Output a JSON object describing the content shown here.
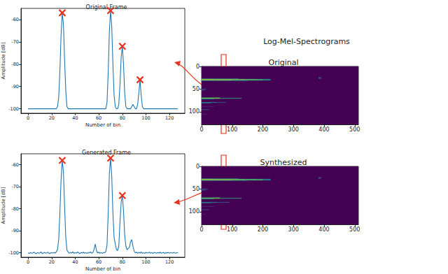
{
  "title": "Log-Mel-Spectrograms",
  "chart_data": [
    {
      "type": "line",
      "title": "Original Frame",
      "x_label": "Number of bin",
      "y_label": "Amplitude [dB]",
      "xlim": [
        -6,
        133
      ],
      "ylim": [
        -102,
        -55
      ],
      "xticks": [
        0,
        20,
        40,
        60,
        80,
        100,
        120
      ],
      "yticks": [
        -100,
        -90,
        -80,
        -70,
        -60
      ],
      "series": [
        {
          "type": "line",
          "color": "#1f77b4",
          "x": [
            0,
            1,
            2,
            3,
            4,
            5,
            6,
            7,
            8,
            9,
            10,
            11,
            12,
            13,
            14,
            15,
            16,
            17,
            18,
            19,
            20,
            21,
            22,
            23,
            24,
            25,
            26,
            27,
            28,
            29,
            30,
            31,
            32,
            33,
            34,
            35,
            36,
            37,
            38,
            39,
            40,
            41,
            42,
            43,
            44,
            45,
            46,
            47,
            48,
            49,
            50,
            51,
            52,
            53,
            54,
            55,
            56,
            57,
            58,
            59,
            60,
            61,
            62,
            63,
            64,
            65,
            66,
            67,
            68,
            69,
            70,
            71,
            72,
            73,
            74,
            75,
            76,
            77,
            78,
            79,
            80,
            81,
            82,
            83,
            84,
            85,
            86,
            87,
            88,
            89,
            90,
            91,
            92,
            93,
            94,
            95,
            96,
            97,
            98,
            99,
            100,
            101,
            102,
            103,
            104,
            105,
            106,
            107,
            108,
            109,
            110,
            111,
            112,
            113,
            114,
            115,
            116,
            117,
            118,
            119,
            120,
            121,
            122,
            123,
            124,
            125,
            126,
            127
          ],
          "values": [
            -100,
            -100,
            -100,
            -100,
            -100,
            -100,
            -100,
            -100,
            -100,
            -100,
            -100,
            -100,
            -100,
            -100,
            -100,
            -100,
            -100,
            -100,
            -100,
            -100,
            -100,
            -100,
            -100,
            -100,
            -100,
            -99,
            -95,
            -83,
            -67,
            -57,
            -62,
            -78,
            -92,
            -99,
            -100,
            -100,
            -100,
            -100,
            -100,
            -100,
            -100,
            -100,
            -100,
            -100,
            -100,
            -100,
            -100,
            -100,
            -100,
            -100,
            -100,
            -100,
            -100,
            -100,
            -100,
            -100,
            -100,
            -100,
            -100,
            -100,
            -100,
            -100,
            -100,
            -100,
            -100,
            -100,
            -100,
            -97,
            -84,
            -65,
            -56,
            -63,
            -80,
            -94,
            -99,
            -100,
            -100,
            -98,
            -89,
            -77,
            -72,
            -80,
            -93,
            -99,
            -100,
            -100,
            -100,
            -100,
            -99,
            -98,
            -99,
            -100,
            -100,
            -98,
            -93,
            -87,
            -94,
            -99,
            -100,
            -100,
            -100,
            -100,
            -100,
            -100,
            -100,
            -100,
            -100,
            -100,
            -100,
            -100,
            -100,
            -100,
            -100,
            -100,
            -100,
            -100,
            -100,
            -100,
            -100,
            -100,
            -100,
            -100,
            -100,
            -100,
            -100,
            -100,
            -100,
            -100
          ]
        },
        {
          "type": "scatter",
          "marker": "x",
          "color": "#e8331c",
          "x": [
            29,
            70,
            80,
            95
          ],
          "values": [
            -57,
            -56,
            -72,
            -87
          ]
        }
      ]
    },
    {
      "type": "line",
      "title": "Generated Frame",
      "x_label": "Number of bin",
      "y_label": "Amplitude [dB]",
      "xlim": [
        -6,
        133
      ],
      "ylim": [
        -102,
        -55
      ],
      "xticks": [
        0,
        20,
        40,
        60,
        80,
        100,
        120
      ],
      "yticks": [
        -100,
        -90,
        -80,
        -70,
        -60
      ],
      "series": [
        {
          "type": "line",
          "color": "#1f77b4",
          "x": [
            0,
            1,
            2,
            3,
            4,
            5,
            6,
            7,
            8,
            9,
            10,
            11,
            12,
            13,
            14,
            15,
            16,
            17,
            18,
            19,
            20,
            21,
            22,
            23,
            24,
            25,
            26,
            27,
            28,
            29,
            30,
            31,
            32,
            33,
            34,
            35,
            36,
            37,
            38,
            39,
            40,
            41,
            42,
            43,
            44,
            45,
            46,
            47,
            48,
            49,
            50,
            51,
            52,
            53,
            54,
            55,
            56,
            57,
            58,
            59,
            60,
            61,
            62,
            63,
            64,
            65,
            66,
            67,
            68,
            69,
            70,
            71,
            72,
            73,
            74,
            75,
            76,
            77,
            78,
            79,
            80,
            81,
            82,
            83,
            84,
            85,
            86,
            87,
            88,
            89,
            90,
            91,
            92,
            93,
            94,
            95,
            96,
            97,
            98,
            99,
            100,
            101,
            102,
            103,
            104,
            105,
            106,
            107,
            108,
            109,
            110,
            111,
            112,
            113,
            114,
            115,
            116,
            117,
            118,
            119,
            120,
            121,
            122,
            123,
            124,
            125,
            126,
            127
          ],
          "values": [
            -100,
            -100.3,
            -99.8,
            -100.2,
            -100,
            -99.7,
            -100.1,
            -100.4,
            -99.9,
            -100.2,
            -100,
            -99.6,
            -100.3,
            -100.1,
            -99.8,
            -100.2,
            -100,
            -99.7,
            -100.4,
            -100.1,
            -99.9,
            -100.2,
            -99.8,
            -100.1,
            -99.5,
            -98.5,
            -94,
            -82,
            -67,
            -58,
            -63,
            -79,
            -93,
            -98.8,
            -99.6,
            -100.2,
            -99.8,
            -100.1,
            -99.5,
            -100.3,
            -99.9,
            -100.2,
            -99.6,
            -100,
            -100.4,
            -99.8,
            -100.1,
            -99.7,
            -100.2,
            -99.9,
            -100.3,
            -99.8,
            -100,
            -99.6,
            -100.2,
            -99.9,
            -98.5,
            -96,
            -98.8,
            -100.1,
            -99.7,
            -100.2,
            -99.9,
            -100.3,
            -99.8,
            -100,
            -99.4,
            -96.5,
            -82,
            -64,
            -57,
            -65,
            -82,
            -93,
            -96,
            -98.5,
            -99,
            -97,
            -86,
            -77,
            -74,
            -81,
            -92,
            -97,
            -98.6,
            -98,
            -97.5,
            -95,
            -94,
            -97,
            -99.2,
            -100,
            -99.7,
            -100.2,
            -99.8,
            -100.1,
            -99.6,
            -100.2,
            -99.9,
            -100.3,
            -99.8,
            -100.1,
            -100,
            -99.7,
            -100.2,
            -99.9,
            -100.3,
            -99.8,
            -100,
            -100.2,
            -99.9,
            -100.1,
            -99.7,
            -100.2,
            -100,
            -99.8,
            -100.3,
            -99.9,
            -100.1,
            -99.8,
            -100.2,
            -99.9,
            -100,
            -100.1,
            -99.8,
            -100.2,
            -100,
            -99.9
          ]
        },
        {
          "type": "scatter",
          "marker": "x",
          "color": "#e8331c",
          "x": [
            29,
            70,
            80
          ],
          "values": [
            -58,
            -57,
            -74
          ]
        }
      ]
    },
    {
      "type": "heatmap",
      "title": "Original",
      "xlim": [
        0,
        512
      ],
      "ylim": [
        128,
        0
      ],
      "xticks": [
        0,
        100,
        200,
        300,
        400,
        500
      ],
      "yticks": [
        0,
        50,
        100
      ],
      "zlim": [
        -100,
        -55
      ],
      "cells": [
        [
          0,
          512,
          0,
          128,
          -100
        ],
        [
          0,
          120,
          27,
          28,
          -84
        ],
        [
          0,
          40,
          28,
          29,
          -66
        ],
        [
          40,
          120,
          28,
          29,
          -68
        ],
        [
          120,
          180,
          28,
          29,
          -72
        ],
        [
          180,
          225,
          28,
          29,
          -80
        ],
        [
          0,
          60,
          29,
          30,
          -57
        ],
        [
          60,
          140,
          29,
          30,
          -59
        ],
        [
          140,
          200,
          29,
          30,
          -64
        ],
        [
          200,
          225,
          29,
          30,
          -72
        ],
        [
          0,
          100,
          30,
          31,
          -63
        ],
        [
          100,
          200,
          30,
          31,
          -70
        ],
        [
          200,
          225,
          30,
          31,
          -82
        ],
        [
          0,
          150,
          31,
          32,
          -86
        ],
        [
          0,
          15,
          50,
          51,
          -85
        ],
        [
          0,
          10,
          52,
          53,
          -88
        ],
        [
          0,
          60,
          69,
          70,
          -70
        ],
        [
          0,
          60,
          70,
          71,
          -62
        ],
        [
          60,
          130,
          70,
          71,
          -72
        ],
        [
          0,
          40,
          71,
          72,
          -76
        ],
        [
          0,
          50,
          79,
          80,
          -76
        ],
        [
          50,
          80,
          79,
          80,
          -86
        ],
        [
          0,
          30,
          80,
          81,
          -82
        ],
        [
          0,
          40,
          88,
          89,
          -95
        ],
        [
          0,
          25,
          95,
          96,
          -88
        ],
        [
          0,
          15,
          105,
          106,
          -95
        ],
        [
          382,
          390,
          24,
          27,
          -88
        ]
      ]
    },
    {
      "type": "heatmap",
      "title": "Synthesized",
      "xlim": [
        0,
        512
      ],
      "ylim": [
        128,
        0
      ],
      "xticks": [
        0,
        100,
        200,
        300,
        400,
        500
      ],
      "yticks": [
        0,
        50,
        100
      ],
      "zlim": [
        -100,
        -55
      ],
      "cells": [
        [
          0,
          512,
          0,
          128,
          -100
        ],
        [
          0,
          120,
          27,
          28,
          -83
        ],
        [
          0,
          40,
          28,
          29,
          -65
        ],
        [
          40,
          120,
          28,
          29,
          -67
        ],
        [
          120,
          180,
          28,
          29,
          -71
        ],
        [
          180,
          225,
          28,
          29,
          -79
        ],
        [
          0,
          60,
          29,
          30,
          -58
        ],
        [
          60,
          140,
          29,
          30,
          -60
        ],
        [
          140,
          200,
          29,
          30,
          -64
        ],
        [
          200,
          225,
          29,
          30,
          -73
        ],
        [
          0,
          100,
          30,
          31,
          -64
        ],
        [
          100,
          200,
          30,
          31,
          -71
        ],
        [
          200,
          225,
          30,
          31,
          -83
        ],
        [
          0,
          150,
          31,
          32,
          -87
        ],
        [
          0,
          20,
          50,
          51,
          -84
        ],
        [
          0,
          12,
          52,
          53,
          -87
        ],
        [
          0,
          60,
          69,
          70,
          -71
        ],
        [
          0,
          60,
          70,
          71,
          -63
        ],
        [
          60,
          130,
          70,
          71,
          -73
        ],
        [
          0,
          40,
          71,
          72,
          -77
        ],
        [
          0,
          50,
          79,
          80,
          -77
        ],
        [
          50,
          90,
          79,
          80,
          -86
        ],
        [
          0,
          30,
          80,
          81,
          -83
        ],
        [
          0,
          40,
          88,
          89,
          -94
        ],
        [
          0,
          25,
          95,
          96,
          -90
        ],
        [
          0,
          15,
          105,
          106,
          -96
        ],
        [
          382,
          390,
          24,
          27,
          -89
        ]
      ]
    }
  ]
}
